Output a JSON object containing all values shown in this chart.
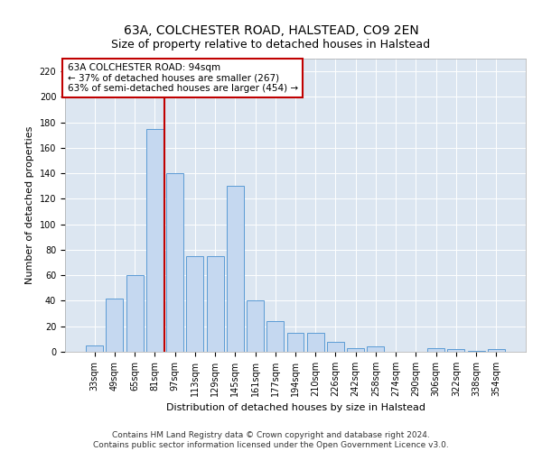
{
  "title": "63A, COLCHESTER ROAD, HALSTEAD, CO9 2EN",
  "subtitle": "Size of property relative to detached houses in Halstead",
  "xlabel": "Distribution of detached houses by size in Halstead",
  "ylabel": "Number of detached properties",
  "categories": [
    "33sqm",
    "49sqm",
    "65sqm",
    "81sqm",
    "97sqm",
    "113sqm",
    "129sqm",
    "145sqm",
    "161sqm",
    "177sqm",
    "194sqm",
    "210sqm",
    "226sqm",
    "242sqm",
    "258sqm",
    "274sqm",
    "290sqm",
    "306sqm",
    "322sqm",
    "338sqm",
    "354sqm"
  ],
  "values": [
    5,
    42,
    60,
    175,
    140,
    75,
    75,
    130,
    40,
    24,
    15,
    15,
    8,
    3,
    4,
    0,
    0,
    3,
    2,
    1,
    2
  ],
  "bar_color": "#c5d8f0",
  "bar_edge_color": "#5b9bd5",
  "property_line_color": "#c00000",
  "annotation_text": "63A COLCHESTER ROAD: 94sqm\n← 37% of detached houses are smaller (267)\n63% of semi-detached houses are larger (454) →",
  "annotation_box_color": "#ffffff",
  "annotation_box_edge_color": "#c00000",
  "ylim": [
    0,
    230
  ],
  "yticks": [
    0,
    20,
    40,
    60,
    80,
    100,
    120,
    140,
    160,
    180,
    200,
    220
  ],
  "background_color": "#dce6f1",
  "footer_text": "Contains HM Land Registry data © Crown copyright and database right 2024.\nContains public sector information licensed under the Open Government Licence v3.0.",
  "title_fontsize": 10,
  "xlabel_fontsize": 8,
  "ylabel_fontsize": 8,
  "tick_fontsize": 7,
  "annotation_fontsize": 7.5,
  "footer_fontsize": 6.5
}
